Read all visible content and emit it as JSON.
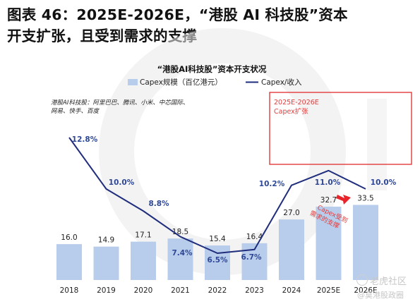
{
  "header": {
    "line1": "图表 46：2025E-2026E，“港股 AI 科技股”资本",
    "line2": "开支扩张，且受到需求的支撑"
  },
  "chart_data": {
    "type": "bar+line",
    "title": "“港股AI科技股”资本开支状况",
    "note_lines": [
      "港股AI科技股：阿里巴巴、腾讯、小米、中芯国际、",
      "网易、快手、百度"
    ],
    "categories": [
      "2018",
      "2019",
      "2020",
      "2021",
      "2022",
      "2023",
      "2024",
      "2025E",
      "2026E"
    ],
    "series": [
      {
        "name": "Capex规模（百亿港元）",
        "kind": "bar",
        "values": [
          16.0,
          14.9,
          17.1,
          18.5,
          15.4,
          16.4,
          27.0,
          32.7,
          33.5
        ],
        "labels": [
          "16.0",
          "14.9",
          "17.1",
          "18.5",
          "15.4",
          "16.4",
          "27.0",
          "32.7",
          "33.5"
        ]
      },
      {
        "name": "Capex/收入",
        "kind": "line",
        "values": [
          12.8,
          10.0,
          8.8,
          7.4,
          6.5,
          6.7,
          10.2,
          11.0,
          10.0
        ],
        "labels": [
          "12.8%",
          "10.0%",
          "8.8%",
          "7.4%",
          "6.5%",
          "6.7%",
          "10.2%",
          "11.0%",
          "10.0%"
        ]
      }
    ],
    "highlight_box_lines": [
      "2025E-2026E",
      "Capex扩张"
    ],
    "annotation_lines": [
      "Capex受到",
      "需求的支撑"
    ],
    "colors": {
      "bar": "#b8cdeb",
      "line": "#1f2d7c",
      "label_blue": "#2e4797",
      "highlight": "#e23b3b",
      "arrow": "#e8232a"
    },
    "grid": false,
    "legend": "top"
  },
  "watermarks": {
    "tiger": "老虎社区",
    "user": "@莫港股政圈"
  }
}
